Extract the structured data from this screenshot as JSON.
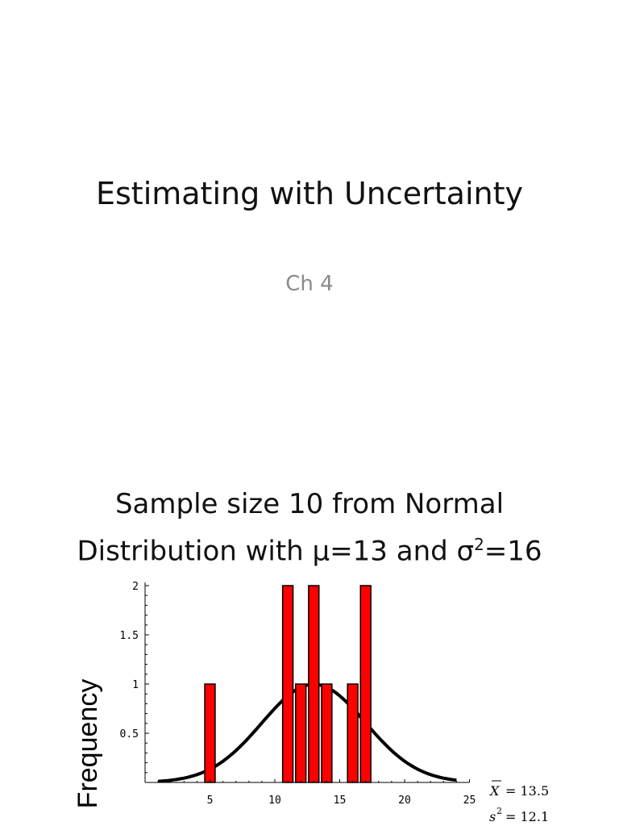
{
  "slide1": {
    "title": "Estimating with Uncertainty",
    "subtitle": "Ch 4"
  },
  "slide2": {
    "title_line1": "Sample size 10 from Normal",
    "title_line2_pre": "Distribution with μ=13 and σ",
    "title_line2_sup": "2",
    "title_line2_post": "=16",
    "stats": {
      "xbar_symbol": "X",
      "xbar_value": "= 13.5",
      "s2_symbol": "s",
      "s2_sup": "2",
      "s2_value": "= 12.1"
    }
  },
  "chart_data": {
    "type": "bar",
    "ylabel": "Frequency",
    "xlim": [
      0,
      25
    ],
    "ylim": [
      0,
      2
    ],
    "x_ticks": [
      "5",
      "10",
      "15",
      "20",
      "25"
    ],
    "y_ticks": [
      "0.5",
      "1",
      "1.5",
      "2"
    ],
    "bar_color": "#ff0000",
    "bars": [
      {
        "x": 5,
        "value": 1
      },
      {
        "x": 11,
        "value": 2
      },
      {
        "x": 12,
        "value": 1
      },
      {
        "x": 13,
        "value": 2
      },
      {
        "x": 14,
        "value": 1
      },
      {
        "x": 16,
        "value": 1
      },
      {
        "x": 17,
        "value": 2
      }
    ],
    "curve": {
      "type": "normal-density",
      "mean": 13,
      "variance": 16,
      "color": "#000000"
    }
  }
}
